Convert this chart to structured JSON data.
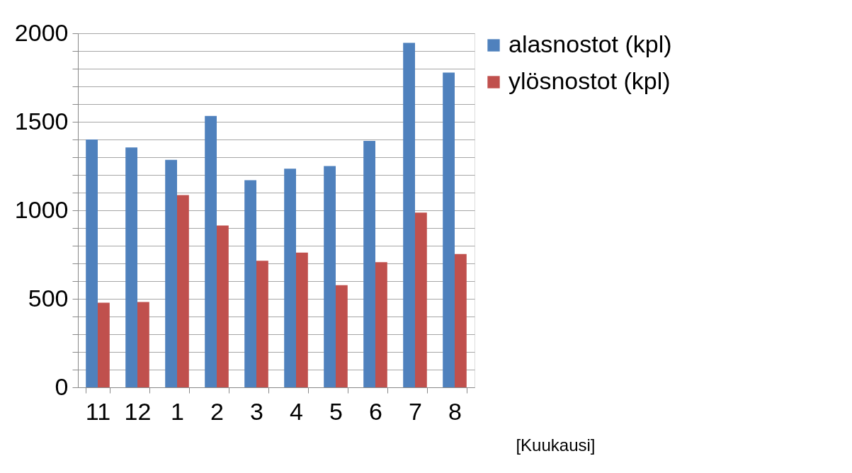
{
  "chart_data": {
    "type": "bar",
    "xlabel": "[Kuukausi]",
    "categories": [
      "11",
      "12",
      "1",
      "2",
      "3",
      "4",
      "5",
      "6",
      "7",
      "8"
    ],
    "series": [
      {
        "name": "alasnostot (kpl)",
        "color": "#4f81bd",
        "values": [
          1400,
          1355,
          1285,
          1533,
          1170,
          1235,
          1250,
          1392,
          1946,
          1778
        ]
      },
      {
        "name": "ylösnostot (kpl)",
        "color": "#c0504d",
        "values": [
          478,
          482,
          1086,
          914,
          715,
          761,
          577,
          707,
          987,
          753
        ]
      }
    ],
    "ylim": [
      0,
      2000
    ],
    "yticks": [
      0,
      {
        "value": 100,
        "label": null
      },
      {
        "value": 200,
        "label": null
      },
      {
        "value": 300,
        "label": null
      },
      {
        "value": 400,
        "label": null
      },
      500,
      {
        "value": 600,
        "label": null
      },
      {
        "value": 700,
        "label": null
      },
      {
        "value": 800,
        "label": null
      },
      {
        "value": 900,
        "label": null
      },
      1000,
      {
        "value": 1100,
        "label": null
      },
      {
        "value": 1200,
        "label": null
      },
      {
        "value": 1300,
        "label": null
      },
      {
        "value": 1400,
        "label": null
      },
      1500,
      {
        "value": 1600,
        "label": null
      },
      {
        "value": 1700,
        "label": null
      },
      {
        "value": 1800,
        "label": null
      },
      {
        "value": 1900,
        "label": null
      },
      2000
    ],
    "grid": "y",
    "legend": "right"
  }
}
